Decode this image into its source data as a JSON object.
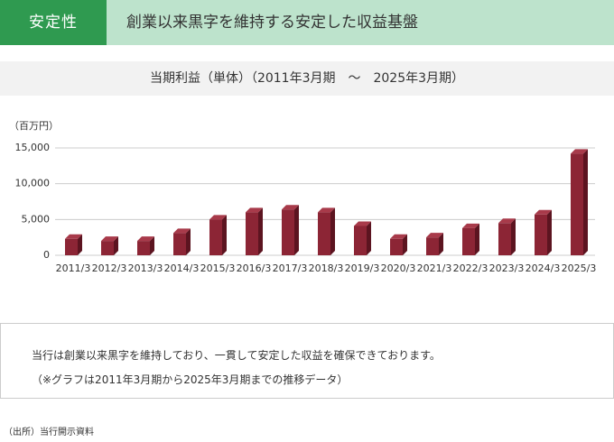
{
  "header": {
    "tag": "安定性",
    "title": "創業以来黒字を維持する安定した収益基盤"
  },
  "chart_data": {
    "type": "bar",
    "title": "当期利益（単体）（2011年3月期　～　2025年3月期）",
    "y_label": "（百万円）",
    "categories": [
      "2011/3",
      "2012/3",
      "2013/3",
      "2014/3",
      "2015/3",
      "2016/3",
      "2017/3",
      "2018/3",
      "2019/3",
      "2020/3",
      "2021/3",
      "2022/3",
      "2023/3",
      "2024/3",
      "2025/3"
    ],
    "values": [
      2300,
      2000,
      2000,
      3100,
      5000,
      6000,
      6400,
      6000,
      4100,
      2300,
      2500,
      3800,
      4500,
      5700,
      14200
    ],
    "color": "#8c2535",
    "ylim": [
      0,
      15000
    ],
    "yticks": [
      0,
      {
        "value": 5000,
        "label": "5,000"
      },
      {
        "value": 10000,
        "label": "10,000"
      },
      {
        "value": 15000,
        "label": "15,000"
      }
    ],
    "grid": true
  },
  "note": {
    "lines": [
      "当行は創業以来黒字を維持しており、一貫して安定した収益を確保できております。",
      "（※グラフは2011年3月期から2025年3月期までの推移データ）"
    ]
  },
  "source": "（出所）当行開示資料"
}
